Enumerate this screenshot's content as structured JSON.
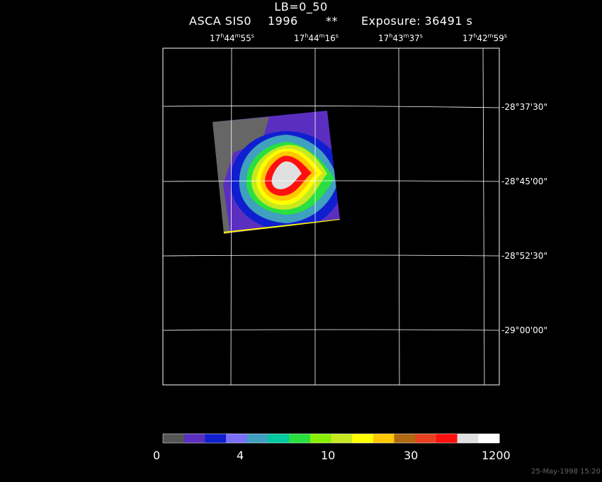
{
  "header": {
    "band": "LB=0_50",
    "instrument": "ASCA SIS0",
    "year": "1996",
    "flag": "**",
    "exposure": "Exposure: 36491 s"
  },
  "ra_labels": [
    {
      "h": "17",
      "m": "44",
      "s": "55"
    },
    {
      "h": "17",
      "m": "44",
      "s": "16"
    },
    {
      "h": "17",
      "m": "43",
      "s": "37"
    },
    {
      "h": "17",
      "m": "42",
      "s": "59"
    }
  ],
  "dec_labels": [
    "-28°37'30\"",
    "-28°45'00\"",
    "-28°52'30\"",
    "-29°00'00\""
  ],
  "colorbar": {
    "colors": [
      "#555555",
      "#5a2fbf",
      "#0f1fcf",
      "#7a6ff5",
      "#3fa0c0",
      "#00c8a0",
      "#28e040",
      "#88f000",
      "#c8e820",
      "#ffff00",
      "#ffc800",
      "#b06a10",
      "#e84020",
      "#ff1010",
      "#e0e0e0",
      "#ffffff"
    ],
    "tick_labels": [
      "0",
      "4",
      "10",
      "30",
      "1200"
    ]
  },
  "footer": "25-May-1998 15:20"
}
